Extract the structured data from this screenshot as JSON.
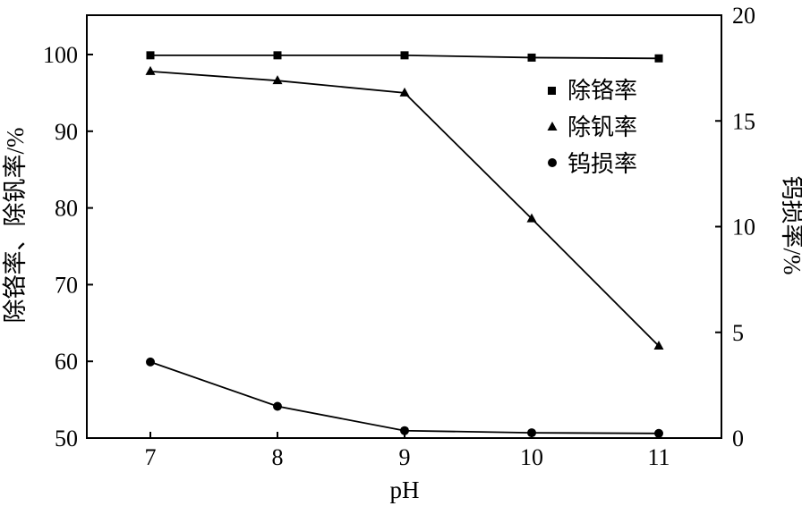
{
  "chart_data": {
    "type": "line",
    "xlabel": "pH",
    "ylabel_left": "除铬率、除钒率/%",
    "ylabel_right": "钨损率/%",
    "x": [
      7,
      8,
      9,
      10,
      11
    ],
    "xlim": [
      6.5,
      11.5
    ],
    "ylim_left": [
      50,
      105
    ],
    "ylim_right": [
      0,
      20
    ],
    "xticks": [
      "7",
      "8",
      "9",
      "10",
      "11"
    ],
    "yticks_left": [
      "50",
      "60",
      "70",
      "80",
      "90",
      "100"
    ],
    "yticks_right": [
      "0",
      "5",
      "10",
      "15",
      "20"
    ],
    "series": [
      {
        "name": "除铬率",
        "marker": "square",
        "axis": "left",
        "values": [
          99.9,
          99.9,
          99.9,
          99.6,
          99.5
        ]
      },
      {
        "name": "除钒率",
        "marker": "triangle",
        "axis": "left",
        "values": [
          97.8,
          96.6,
          95.0,
          78.6,
          62.0
        ]
      },
      {
        "name": "钨损率",
        "marker": "circle",
        "axis": "right",
        "values": [
          3.6,
          1.5,
          0.35,
          0.25,
          0.22
        ]
      }
    ],
    "legend_position": "top-right",
    "grid": false,
    "color": "#000000"
  }
}
